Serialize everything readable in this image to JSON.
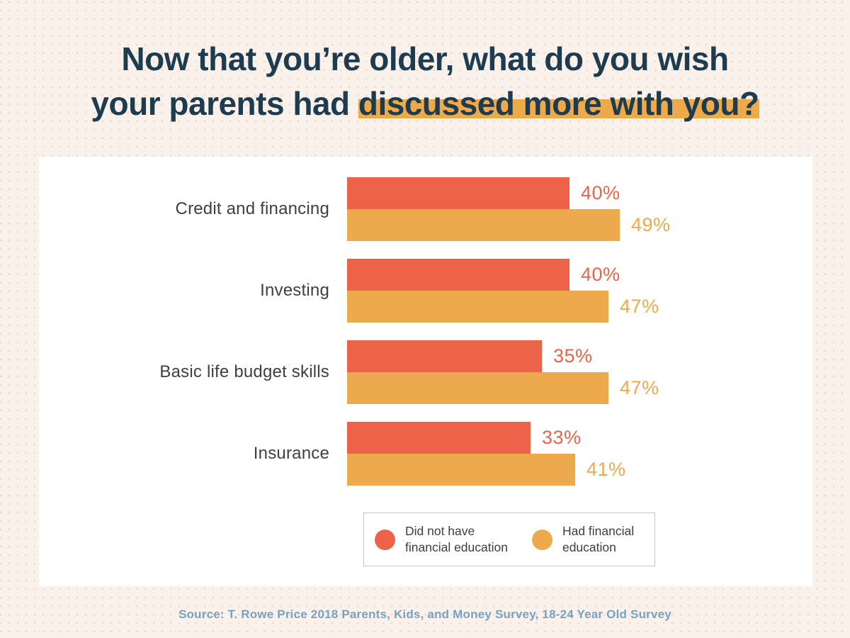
{
  "title": {
    "line1": "Now that you’re older, what do you wish",
    "line2_plain": "your parents had ",
    "line2_highlight": "discussed more with you?"
  },
  "chart_data": {
    "type": "bar",
    "orientation": "horizontal",
    "title": "Now that you're older, what do you wish your parents had discussed more with you?",
    "categories": [
      "Credit and financing",
      "Investing",
      "Basic life budget skills",
      "Insurance"
    ],
    "series": [
      {
        "name": "Did not have financial education",
        "color": "#ed6349",
        "values": [
          40,
          40,
          35,
          33
        ]
      },
      {
        "name": "Had financial education",
        "color": "#edaa4c",
        "values": [
          49,
          47,
          47,
          41
        ]
      }
    ],
    "value_suffix": "%",
    "xlim": [
      0,
      100
    ],
    "grid": false,
    "legend_position": "bottom"
  },
  "legend": {
    "items": [
      {
        "line1": "Did not have",
        "line2": "financial education",
        "color": "#ed6349"
      },
      {
        "line1": "Had financial",
        "line2": "education",
        "color": "#edaa4c"
      }
    ]
  },
  "source": "Source: T. Rowe Price 2018 Parents, Kids, and Money Survey, 18-24 Year Old Survey",
  "colors": {
    "background": "#faf1ea",
    "background_dots": "#ebd9d2",
    "title_text": "#1d3c50",
    "title_highlight": "#eda94a",
    "bar_red": "#ed6349",
    "bar_orange": "#edaa4c",
    "category_text": "#3f3f3f",
    "legend_border": "#c9c9c9",
    "source_text": "#76a3c5",
    "card_background": "#ffffff"
  }
}
